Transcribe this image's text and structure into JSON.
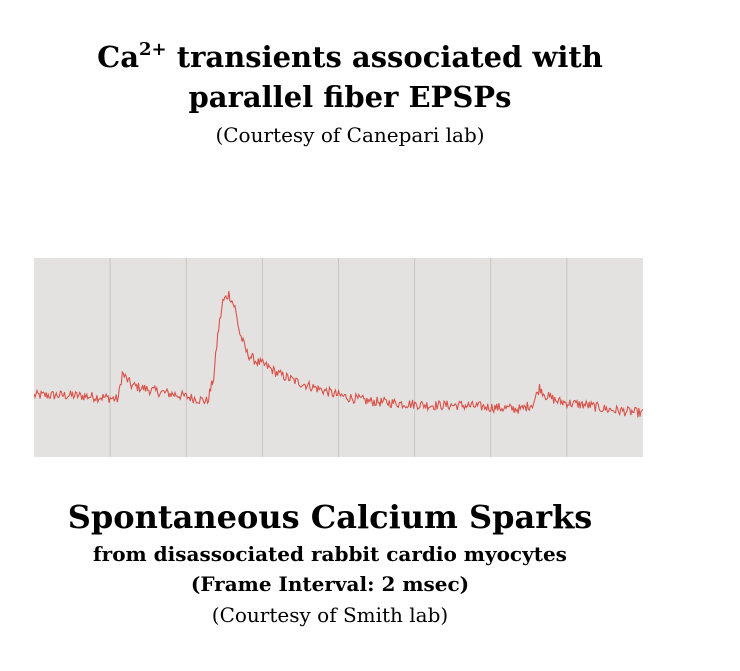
{
  "top": {
    "title_prefix": "Ca",
    "title_sup": "2+",
    "title_rest": " transients associated with",
    "title_line2": "parallel fiber EPSPs",
    "credit": "(Courtesy of Canepari lab)"
  },
  "bottom": {
    "title": "Spontaneous Calcium Sparks",
    "subtitle": "from disassociated rabbit cardio myocytes",
    "frame_interval": "(Frame Interval: 2 msec)",
    "credit": "(Courtesy of Smith lab)"
  },
  "colors": {
    "background": "#ffffff",
    "plot_background": "#e4e2e0",
    "grid": "#c9c6c4",
    "trace": "#d9534a"
  },
  "chart_data": {
    "type": "line",
    "title": "",
    "xlabel": "",
    "ylabel": "",
    "grid": true,
    "x_gridlines": 7,
    "xlim": [
      0,
      100
    ],
    "ylim": [
      0,
      100
    ],
    "series": [
      {
        "x": [
          0,
          6,
          11.5,
          13.8,
          14.5,
          16,
          20,
          24,
          28.5,
          29.5,
          30.2,
          31,
          32,
          33,
          33.8,
          35,
          36.5,
          38,
          40,
          43,
          46,
          50,
          55,
          60,
          65,
          70,
          75,
          80,
          82,
          83,
          84,
          86,
          88,
          91,
          94,
          97,
          100
        ],
        "y": [
          31,
          31,
          30,
          29,
          42,
          36,
          33,
          31,
          28,
          40,
          62,
          78,
          82,
          75,
          62,
          52,
          48,
          46,
          42,
          38,
          35,
          31,
          28,
          27,
          26,
          26,
          25,
          24,
          27,
          35,
          31,
          28,
          27,
          26,
          24,
          23,
          22
        ]
      }
    ]
  }
}
